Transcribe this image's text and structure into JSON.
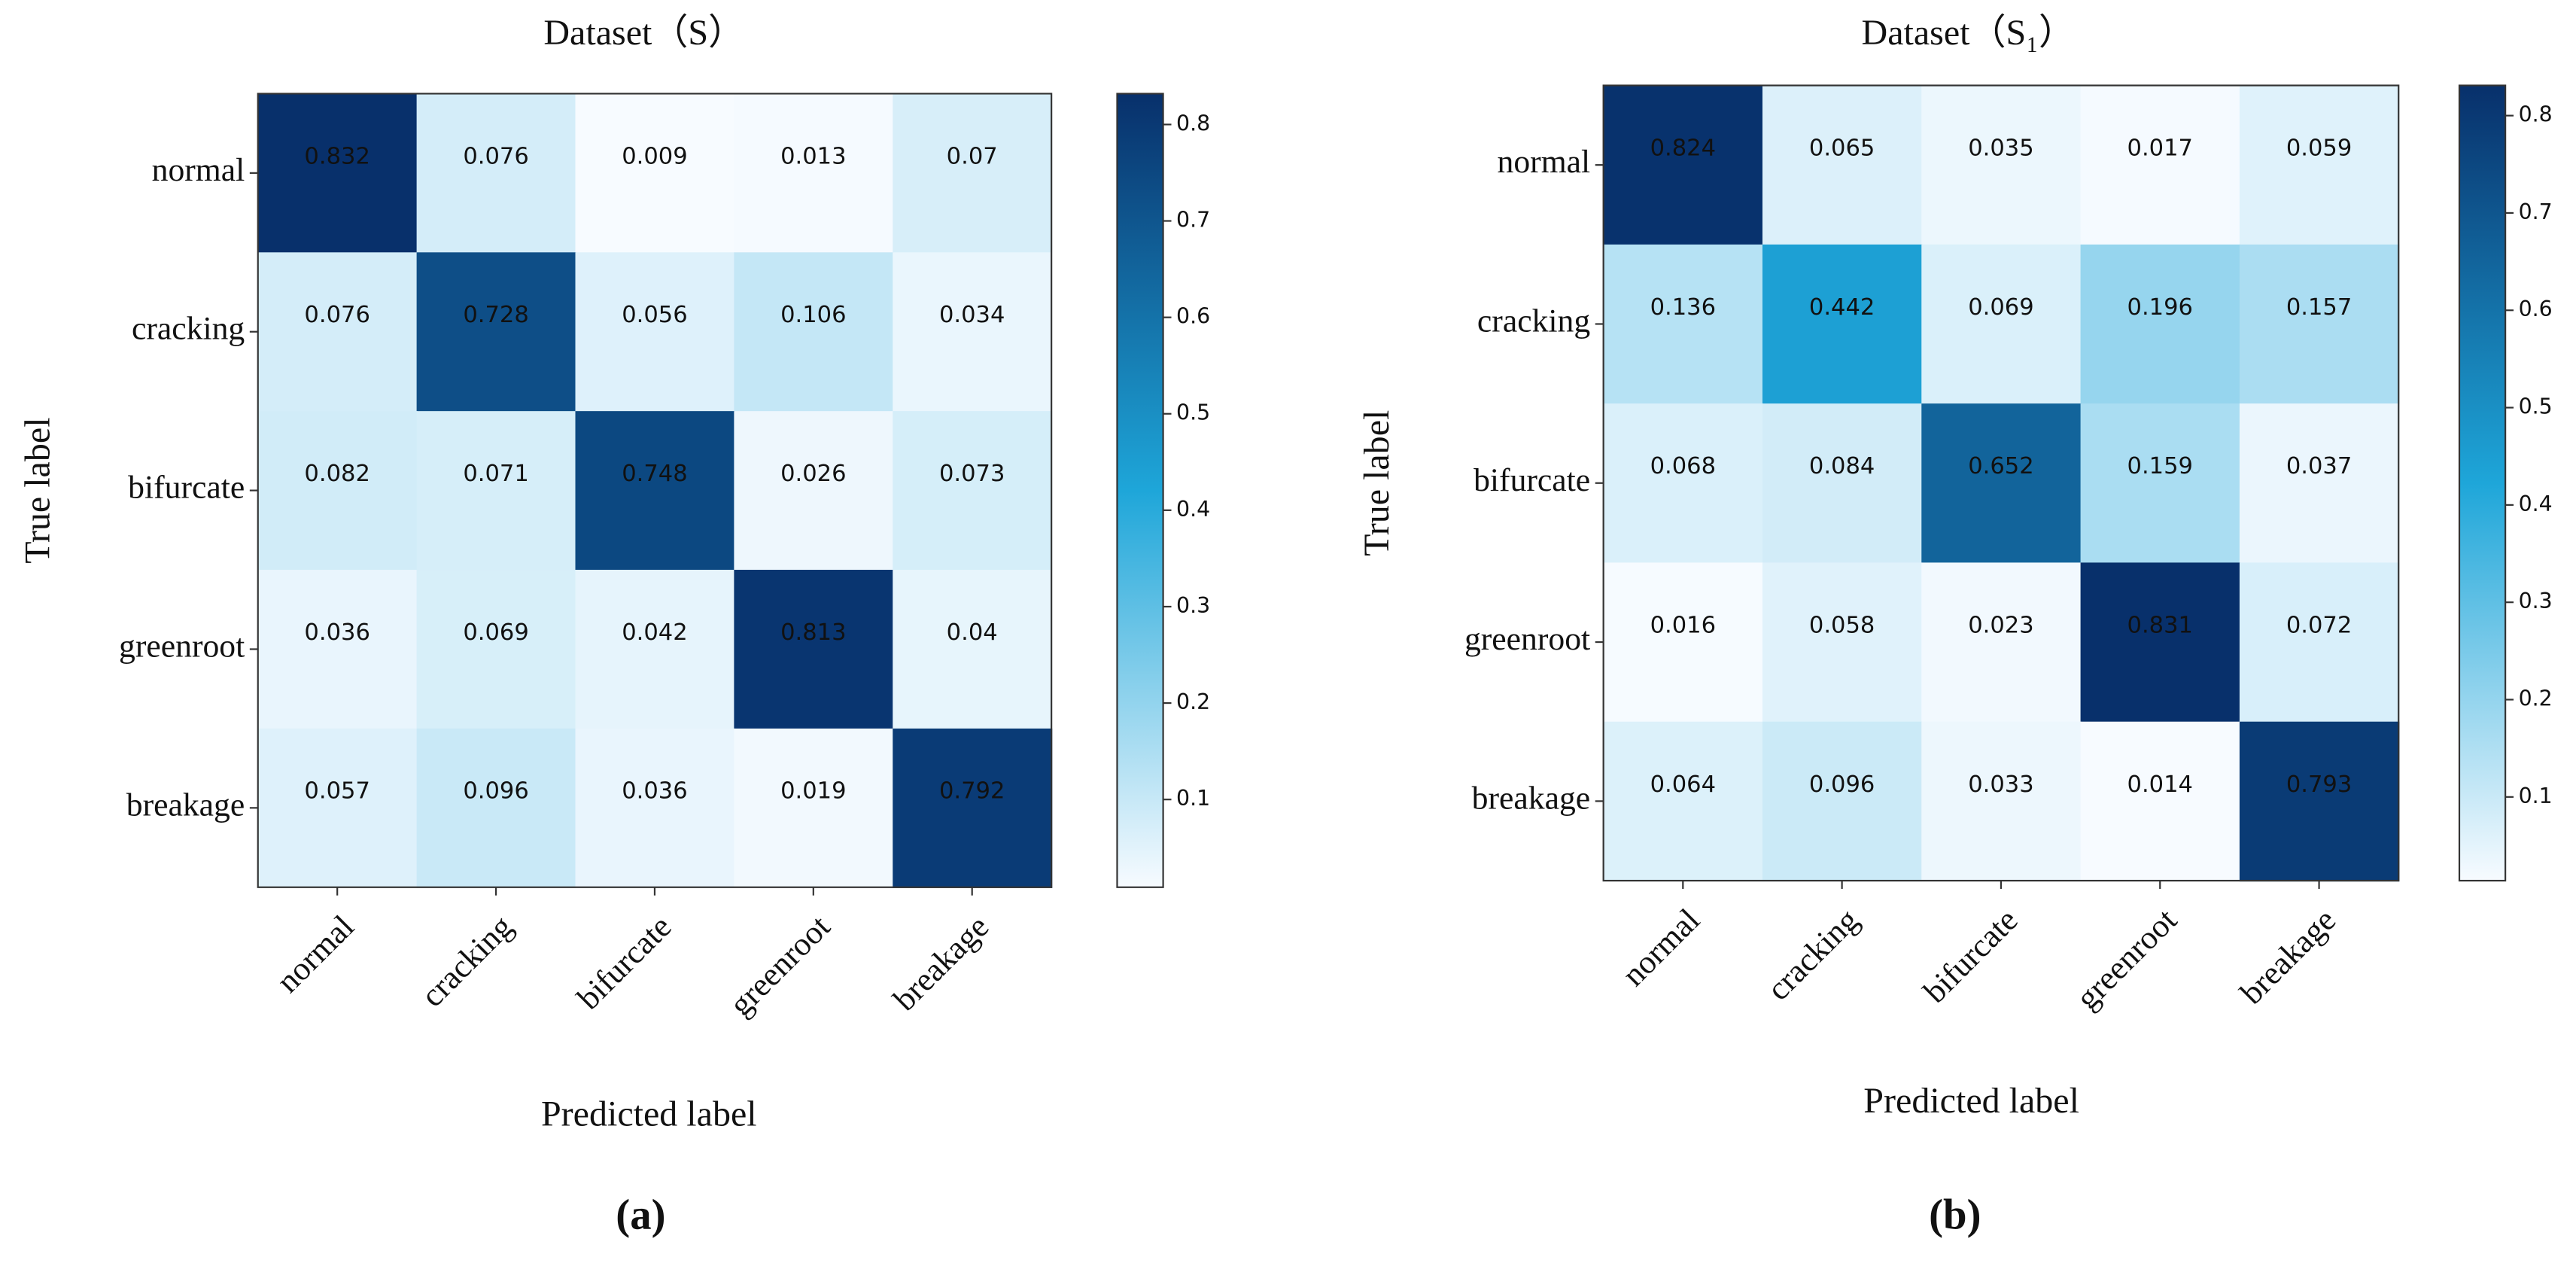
{
  "chart_data": [
    {
      "type": "heatmap",
      "title": "Dataset（S）",
      "panel_label": "(a)",
      "x_label": "Predicted label",
      "y_label": "True label",
      "categories": [
        "normal",
        "cracking",
        "bifurcate",
        "greenroot",
        "breakage"
      ],
      "y_categories": [
        "normal",
        "cracking",
        "bifurcate",
        "greenroot",
        "breakage"
      ],
      "values": [
        [
          0.832,
          0.076,
          0.009,
          0.013,
          0.07
        ],
        [
          0.076,
          0.728,
          0.056,
          0.106,
          0.034
        ],
        [
          0.082,
          0.071,
          0.748,
          0.026,
          0.073
        ],
        [
          0.036,
          0.069,
          0.042,
          0.813,
          0.04
        ],
        [
          0.057,
          0.096,
          0.036,
          0.019,
          0.792
        ]
      ],
      "colors": [
        "#f7fbff",
        "#1ea6d9",
        "#08306b"
      ],
      "clim": [
        0.009,
        0.832
      ],
      "cticks": [
        0.1,
        0.2,
        0.3,
        0.4,
        0.5,
        0.6,
        0.7,
        0.8
      ]
    },
    {
      "type": "heatmap",
      "title": "Dataset（S₁）",
      "panel_label": "(b)",
      "x_label": "Predicted label",
      "y_label": "True label",
      "categories": [
        "normal",
        "cracking",
        "bifurcate",
        "greenroot",
        "breakage"
      ],
      "y_categories": [
        "normal",
        "cracking",
        "bifurcate",
        "greenroot",
        "breakage"
      ],
      "values": [
        [
          0.824,
          0.065,
          0.035,
          0.017,
          0.059
        ],
        [
          0.136,
          0.442,
          0.069,
          0.196,
          0.157
        ],
        [
          0.068,
          0.084,
          0.652,
          0.159,
          0.037
        ],
        [
          0.016,
          0.058,
          0.023,
          0.831,
          0.072
        ],
        [
          0.064,
          0.096,
          0.033,
          0.014,
          0.793
        ]
      ],
      "colors": [
        "#f7fbff",
        "#1ea6d9",
        "#08306b"
      ],
      "clim": [
        0.014,
        0.831
      ],
      "cticks": [
        0.1,
        0.2,
        0.3,
        0.4,
        0.5,
        0.6,
        0.7,
        0.8
      ]
    }
  ]
}
